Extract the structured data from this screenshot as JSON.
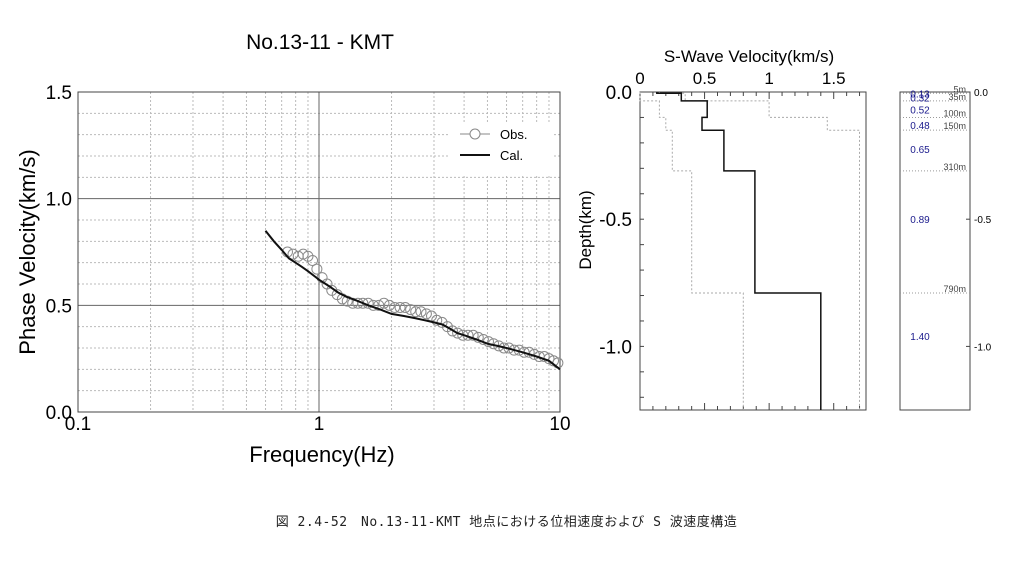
{
  "caption": "図 2.4-52　No.13-11-KMT 地点における位相速度および S 波速度構造",
  "chart_data": [
    {
      "type": "scatter",
      "title": "No.13-11 - KMT",
      "xlabel": "Frequency(Hz)",
      "ylabel": "Phase Velocity(km/s)",
      "x_scale": "log",
      "xlim": [
        0.1,
        10
      ],
      "ylim": [
        0.0,
        1.5
      ],
      "x_tick_labels": [
        "0.1",
        "1",
        "10"
      ],
      "y_tick_labels": [
        "0.0",
        "0.5",
        "1.0",
        "1.5"
      ],
      "legend": {
        "placement": "top-right",
        "entries": [
          "Obs.",
          "Cal."
        ]
      },
      "grid": true,
      "series": [
        {
          "name": "Obs.",
          "marker": "open-circle",
          "x": [
            0.74,
            0.78,
            0.82,
            0.86,
            0.9,
            0.94,
            0.98,
            1.03,
            1.08,
            1.13,
            1.19,
            1.25,
            1.31,
            1.38,
            1.45,
            1.52,
            1.6,
            1.68,
            1.77,
            1.86,
            1.96,
            2.06,
            2.17,
            2.28,
            2.4,
            2.52,
            2.65,
            2.79,
            2.93,
            3.08,
            3.24,
            3.41,
            3.58,
            3.76,
            3.95,
            4.15,
            4.36,
            4.58,
            4.81,
            5.05,
            5.3,
            5.57,
            5.85,
            6.14,
            6.45,
            6.77,
            7.1,
            7.45,
            7.82,
            8.2,
            8.6,
            9.0,
            9.4,
            9.8
          ],
          "y": [
            0.75,
            0.74,
            0.73,
            0.74,
            0.73,
            0.71,
            0.67,
            0.63,
            0.6,
            0.57,
            0.55,
            0.53,
            0.52,
            0.51,
            0.51,
            0.51,
            0.51,
            0.5,
            0.5,
            0.51,
            0.5,
            0.49,
            0.49,
            0.49,
            0.48,
            0.47,
            0.47,
            0.46,
            0.45,
            0.43,
            0.42,
            0.4,
            0.38,
            0.37,
            0.36,
            0.36,
            0.36,
            0.35,
            0.34,
            0.33,
            0.32,
            0.31,
            0.3,
            0.3,
            0.29,
            0.29,
            0.28,
            0.28,
            0.27,
            0.26,
            0.26,
            0.25,
            0.24,
            0.23
          ]
        },
        {
          "name": "Cal.",
          "marker": "line",
          "x": [
            0.6,
            0.65,
            0.7,
            0.75,
            0.8,
            0.85,
            0.9,
            0.95,
            1.0,
            1.1,
            1.2,
            1.3,
            1.45,
            1.6,
            1.8,
            2.0,
            2.25,
            2.5,
            2.75,
            3.0,
            3.25,
            3.5,
            3.75,
            4.0,
            4.5,
            5.0,
            5.5,
            6.0,
            7.0,
            8.0,
            9.0,
            10.0
          ],
          "y": [
            0.85,
            0.8,
            0.76,
            0.72,
            0.7,
            0.68,
            0.66,
            0.64,
            0.62,
            0.59,
            0.56,
            0.54,
            0.52,
            0.5,
            0.48,
            0.46,
            0.45,
            0.44,
            0.43,
            0.42,
            0.41,
            0.39,
            0.37,
            0.36,
            0.34,
            0.32,
            0.31,
            0.3,
            0.28,
            0.26,
            0.24,
            0.2
          ]
        }
      ]
    },
    {
      "type": "line",
      "title": "S-Wave Velocity(km/s)",
      "xlabel": "S-Wave Velocity(km/s)",
      "ylabel": "Depth(km)",
      "xlim": [
        0,
        1.75
      ],
      "ylim": [
        -1.25,
        0.0
      ],
      "x_tick_labels": [
        "0",
        "0.5",
        "1",
        "1.5"
      ],
      "y_tick_labels": [
        "0.0",
        "-0.5",
        "-1.0"
      ],
      "grid": false,
      "profile": {
        "velocity": [
          0.13,
          0.32,
          0.52,
          0.48,
          0.65,
          0.89,
          1.4
        ],
        "bottom_depth": [
          -0.005,
          -0.035,
          -0.1,
          -0.15,
          -0.31,
          -0.79,
          -1.25
        ]
      },
      "bounds_upper": [
        0.15,
        0.35,
        1.0,
        1.45,
        1.7,
        1.7,
        1.7
      ],
      "bounds_lower": [
        0.0,
        0.0,
        0.15,
        0.2,
        0.25,
        0.4,
        0.8
      ]
    },
    {
      "type": "table",
      "title": "",
      "layer_velocity_labels": [
        "0.13",
        "0.32",
        "0.52",
        "0.48",
        "0.65",
        "0.89",
        "1.40"
      ],
      "velocity_label_depths": [
        -0.006,
        -0.022,
        -0.068,
        -0.13,
        -0.225,
        -0.5,
        -0.96
      ],
      "interface_labels": [
        "5m",
        "35m",
        "100m",
        "150m",
        "310m",
        "790m"
      ],
      "interface_depths": [
        -0.005,
        -0.035,
        -0.1,
        -0.15,
        -0.31,
        -0.79
      ],
      "depth_axis_labels": [
        "0.0",
        "-0.5",
        "-1.0"
      ],
      "colors": {
        "velocity_text": "#1a1a8c",
        "interface_text": "#444444"
      }
    }
  ]
}
